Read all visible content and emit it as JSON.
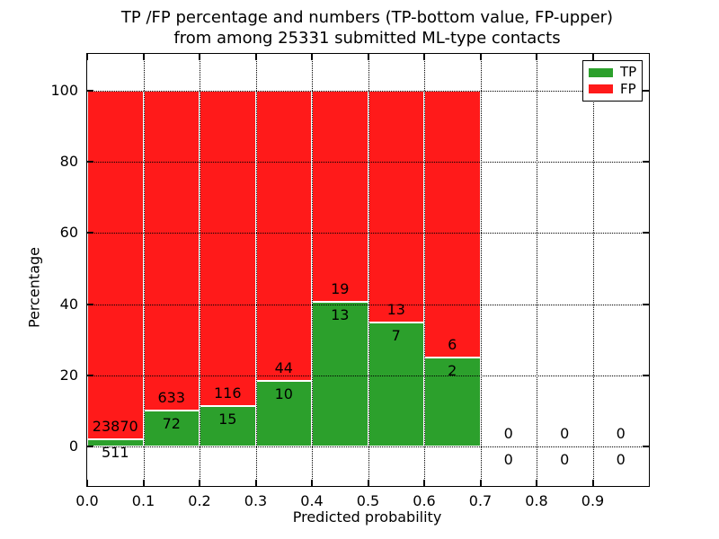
{
  "figure": {
    "background": "#ffffff"
  },
  "chart_data": {
    "type": "bar",
    "stacked": true,
    "title_lines": [
      "TP /FP percentage and numbers (TP-bottom value, FP-upper)",
      "from among 25331 submitted ML-type contacts"
    ],
    "xlabel": "Predicted probability",
    "ylabel": "Percentage",
    "xlim": [
      0.0,
      1.0
    ],
    "ylim": [
      -11.0,
      110.3
    ],
    "grid": true,
    "legend": {
      "position": "upper-right",
      "entries": [
        {
          "name": "TP",
          "color": "#2ca02c"
        },
        {
          "name": "FP",
          "color": "#ff1a1a"
        }
      ]
    },
    "colors": {
      "tp": "#2ca02c",
      "fp": "#ff1a1a",
      "grid": "#000000",
      "text": "#000000"
    },
    "total_submitted": 25331,
    "bin_width": 0.1,
    "yticks": [
      {
        "value": 0,
        "label": "0"
      },
      {
        "value": 20,
        "label": "20"
      },
      {
        "value": 40,
        "label": "40"
      },
      {
        "value": 60,
        "label": "60"
      },
      {
        "value": 80,
        "label": "80"
      },
      {
        "value": 100,
        "label": "100"
      }
    ],
    "xticks": [
      {
        "value": 0.0,
        "label": "0.0"
      },
      {
        "value": 0.1,
        "label": "0.1"
      },
      {
        "value": 0.2,
        "label": "0.2"
      },
      {
        "value": 0.3,
        "label": "0.3"
      },
      {
        "value": 0.4,
        "label": "0.4"
      },
      {
        "value": 0.5,
        "label": "0.5"
      },
      {
        "value": 0.6,
        "label": "0.6"
      },
      {
        "value": 0.7,
        "label": "0.7"
      },
      {
        "value": 0.8,
        "label": "0.8"
      },
      {
        "value": 0.9,
        "label": "0.9"
      }
    ],
    "bins": [
      {
        "range_start": 0.0,
        "tp": 511,
        "fp": 23870,
        "tp_pct": 2.1
      },
      {
        "range_start": 0.1,
        "tp": 72,
        "fp": 633,
        "tp_pct": 10.21
      },
      {
        "range_start": 0.2,
        "tp": 15,
        "fp": 116,
        "tp_pct": 11.45
      },
      {
        "range_start": 0.3,
        "tp": 10,
        "fp": 44,
        "tp_pct": 18.52
      },
      {
        "range_start": 0.4,
        "tp": 13,
        "fp": 19,
        "tp_pct": 40.63
      },
      {
        "range_start": 0.5,
        "tp": 7,
        "fp": 13,
        "tp_pct": 35.0
      },
      {
        "range_start": 0.6,
        "tp": 2,
        "fp": 6,
        "tp_pct": 25.0
      },
      {
        "range_start": 0.7,
        "tp": 0,
        "fp": 0,
        "tp_pct": 0
      },
      {
        "range_start": 0.8,
        "tp": 0,
        "fp": 0,
        "tp_pct": 0
      },
      {
        "range_start": 0.9,
        "tp": 0,
        "fp": 0,
        "tp_pct": 0
      }
    ]
  }
}
